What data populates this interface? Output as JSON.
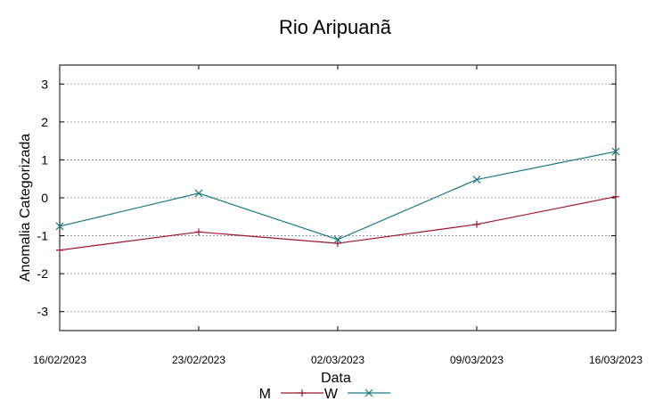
{
  "chart_data": {
    "type": "line",
    "title": "Rio Aripuanã",
    "xlabel": "Data",
    "ylabel": "Anomalia Categorizada",
    "categories": [
      "16/02/2023",
      "23/02/2023",
      "02/03/2023",
      "09/03/2023",
      "16/03/2023"
    ],
    "ylim": [
      -3.5,
      3.5
    ],
    "yticks": [
      "-3",
      "-2",
      "-1",
      "0",
      "1",
      "2",
      "3"
    ],
    "ytick_values": [
      -3,
      -2,
      -1,
      0,
      1,
      2,
      3
    ],
    "grid": true,
    "legend_position": "bottom-center",
    "series": [
      {
        "name": "M",
        "color": "#a0142d",
        "marker": "plus",
        "values": [
          -1.38,
          -0.9,
          -1.2,
          -0.7,
          0.03
        ]
      },
      {
        "name": "W",
        "color": "#167a80",
        "marker": "x",
        "values": [
          -0.75,
          0.12,
          -1.1,
          0.48,
          1.22
        ]
      }
    ]
  }
}
